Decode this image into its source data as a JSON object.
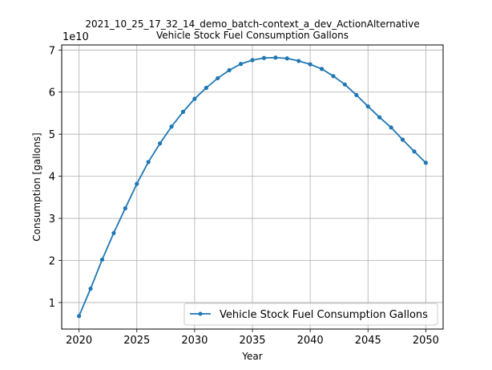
{
  "chart_data": {
    "type": "line",
    "title": "2021_10_25_17_32_14_demo_batch-context_a_dev_ActionAlternative",
    "subtitle": "Vehicle Stock Fuel Consumption Gallons",
    "xlabel": "Year",
    "ylabel": "Consumption [gallons]",
    "y_offset_label": "1e10",
    "xlim": [
      2018.5,
      2051.5
    ],
    "ylim": [
      0.37,
      7.12
    ],
    "x_ticks": [
      2020,
      2025,
      2030,
      2035,
      2040,
      2045,
      2050
    ],
    "y_ticks": [
      1,
      2,
      3,
      4,
      5,
      6,
      7
    ],
    "grid": true,
    "legend_position": "lower-right",
    "colors": {
      "line": "#1f77b4",
      "grid": "#b0b0b0"
    },
    "series": [
      {
        "name": "Vehicle Stock Fuel Consumption Gallons",
        "x": [
          2020,
          2021,
          2022,
          2023,
          2024,
          2025,
          2026,
          2027,
          2028,
          2029,
          2030,
          2031,
          2032,
          2033,
          2034,
          2035,
          2036,
          2037,
          2038,
          2039,
          2040,
          2041,
          2042,
          2043,
          2044,
          2045,
          2046,
          2047,
          2048,
          2049,
          2050
        ],
        "values": [
          0.68,
          1.33,
          2.02,
          2.65,
          3.24,
          3.82,
          4.34,
          4.78,
          5.18,
          5.53,
          5.84,
          6.1,
          6.33,
          6.52,
          6.67,
          6.76,
          6.81,
          6.82,
          6.8,
          6.74,
          6.66,
          6.55,
          6.38,
          6.18,
          5.93,
          5.66,
          5.4,
          5.16,
          4.87,
          4.59,
          4.32
        ]
      }
    ]
  }
}
